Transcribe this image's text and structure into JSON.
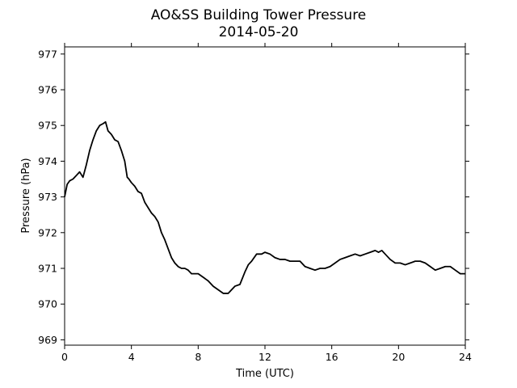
{
  "chart_data": {
    "type": "line",
    "title": "AO&SS Building Tower Pressure",
    "subtitle": "2014-05-20",
    "xlabel": "Time (UTC)",
    "ylabel": "Pressure (hPa)",
    "xlim": [
      0,
      24
    ],
    "ylim": [
      968.85,
      977.2
    ],
    "x_ticks": [
      0,
      4,
      8,
      12,
      16,
      20,
      24
    ],
    "y_ticks": [
      969,
      970,
      971,
      972,
      973,
      974,
      975,
      976,
      977
    ],
    "grid": false,
    "legend": "none",
    "line_color": "#000000",
    "series": [
      {
        "x": [
          0.0,
          0.15,
          0.3,
          0.5,
          0.7,
          0.9,
          1.1,
          1.3,
          1.5,
          1.7,
          1.9,
          2.1,
          2.3,
          2.45,
          2.6,
          2.8,
          3.0,
          3.2,
          3.4,
          3.6,
          3.75,
          3.85,
          4.0,
          4.2,
          4.4,
          4.6,
          4.8,
          5.0,
          5.2,
          5.4,
          5.6,
          5.8,
          6.0,
          6.2,
          6.4,
          6.6,
          6.8,
          7.0,
          7.2,
          7.4,
          7.6,
          7.8,
          8.0,
          8.3,
          8.6,
          8.9,
          9.2,
          9.5,
          9.8,
          10.0,
          10.2,
          10.5,
          10.8,
          11.0,
          11.2,
          11.5,
          11.8,
          12.0,
          12.3,
          12.6,
          12.9,
          13.2,
          13.5,
          13.8,
          14.1,
          14.4,
          14.7,
          15.0,
          15.3,
          15.6,
          15.9,
          16.2,
          16.5,
          16.8,
          17.1,
          17.4,
          17.7,
          18.0,
          18.3,
          18.6,
          18.8,
          19.0,
          19.2,
          19.5,
          19.8,
          20.1,
          20.4,
          20.7,
          21.0,
          21.3,
          21.6,
          21.9,
          22.2,
          22.5,
          22.8,
          23.1,
          23.4,
          23.7,
          24.0
        ],
        "y": [
          973.0,
          973.35,
          973.45,
          973.5,
          973.6,
          973.7,
          973.55,
          973.9,
          974.3,
          974.6,
          974.85,
          975.0,
          975.05,
          975.1,
          974.85,
          974.75,
          974.6,
          974.55,
          974.3,
          974.0,
          973.55,
          973.5,
          973.4,
          973.3,
          973.15,
          973.1,
          972.85,
          972.7,
          972.55,
          972.45,
          972.3,
          972.0,
          971.8,
          971.55,
          971.3,
          971.15,
          971.05,
          971.0,
          971.0,
          970.95,
          970.85,
          970.85,
          970.85,
          970.75,
          970.65,
          970.5,
          970.4,
          970.3,
          970.3,
          970.4,
          970.5,
          970.55,
          970.9,
          971.1,
          971.2,
          971.4,
          971.4,
          971.45,
          971.4,
          971.3,
          971.25,
          971.25,
          971.2,
          971.2,
          971.2,
          971.05,
          971.0,
          970.95,
          971.0,
          971.0,
          971.05,
          971.15,
          971.25,
          971.3,
          971.35,
          971.4,
          971.35,
          971.4,
          971.45,
          971.5,
          971.45,
          971.5,
          971.4,
          971.25,
          971.15,
          971.15,
          971.1,
          971.15,
          971.2,
          971.2,
          971.15,
          971.05,
          970.95,
          971.0,
          971.05,
          971.05,
          970.95,
          970.85,
          970.85
        ]
      }
    ]
  }
}
